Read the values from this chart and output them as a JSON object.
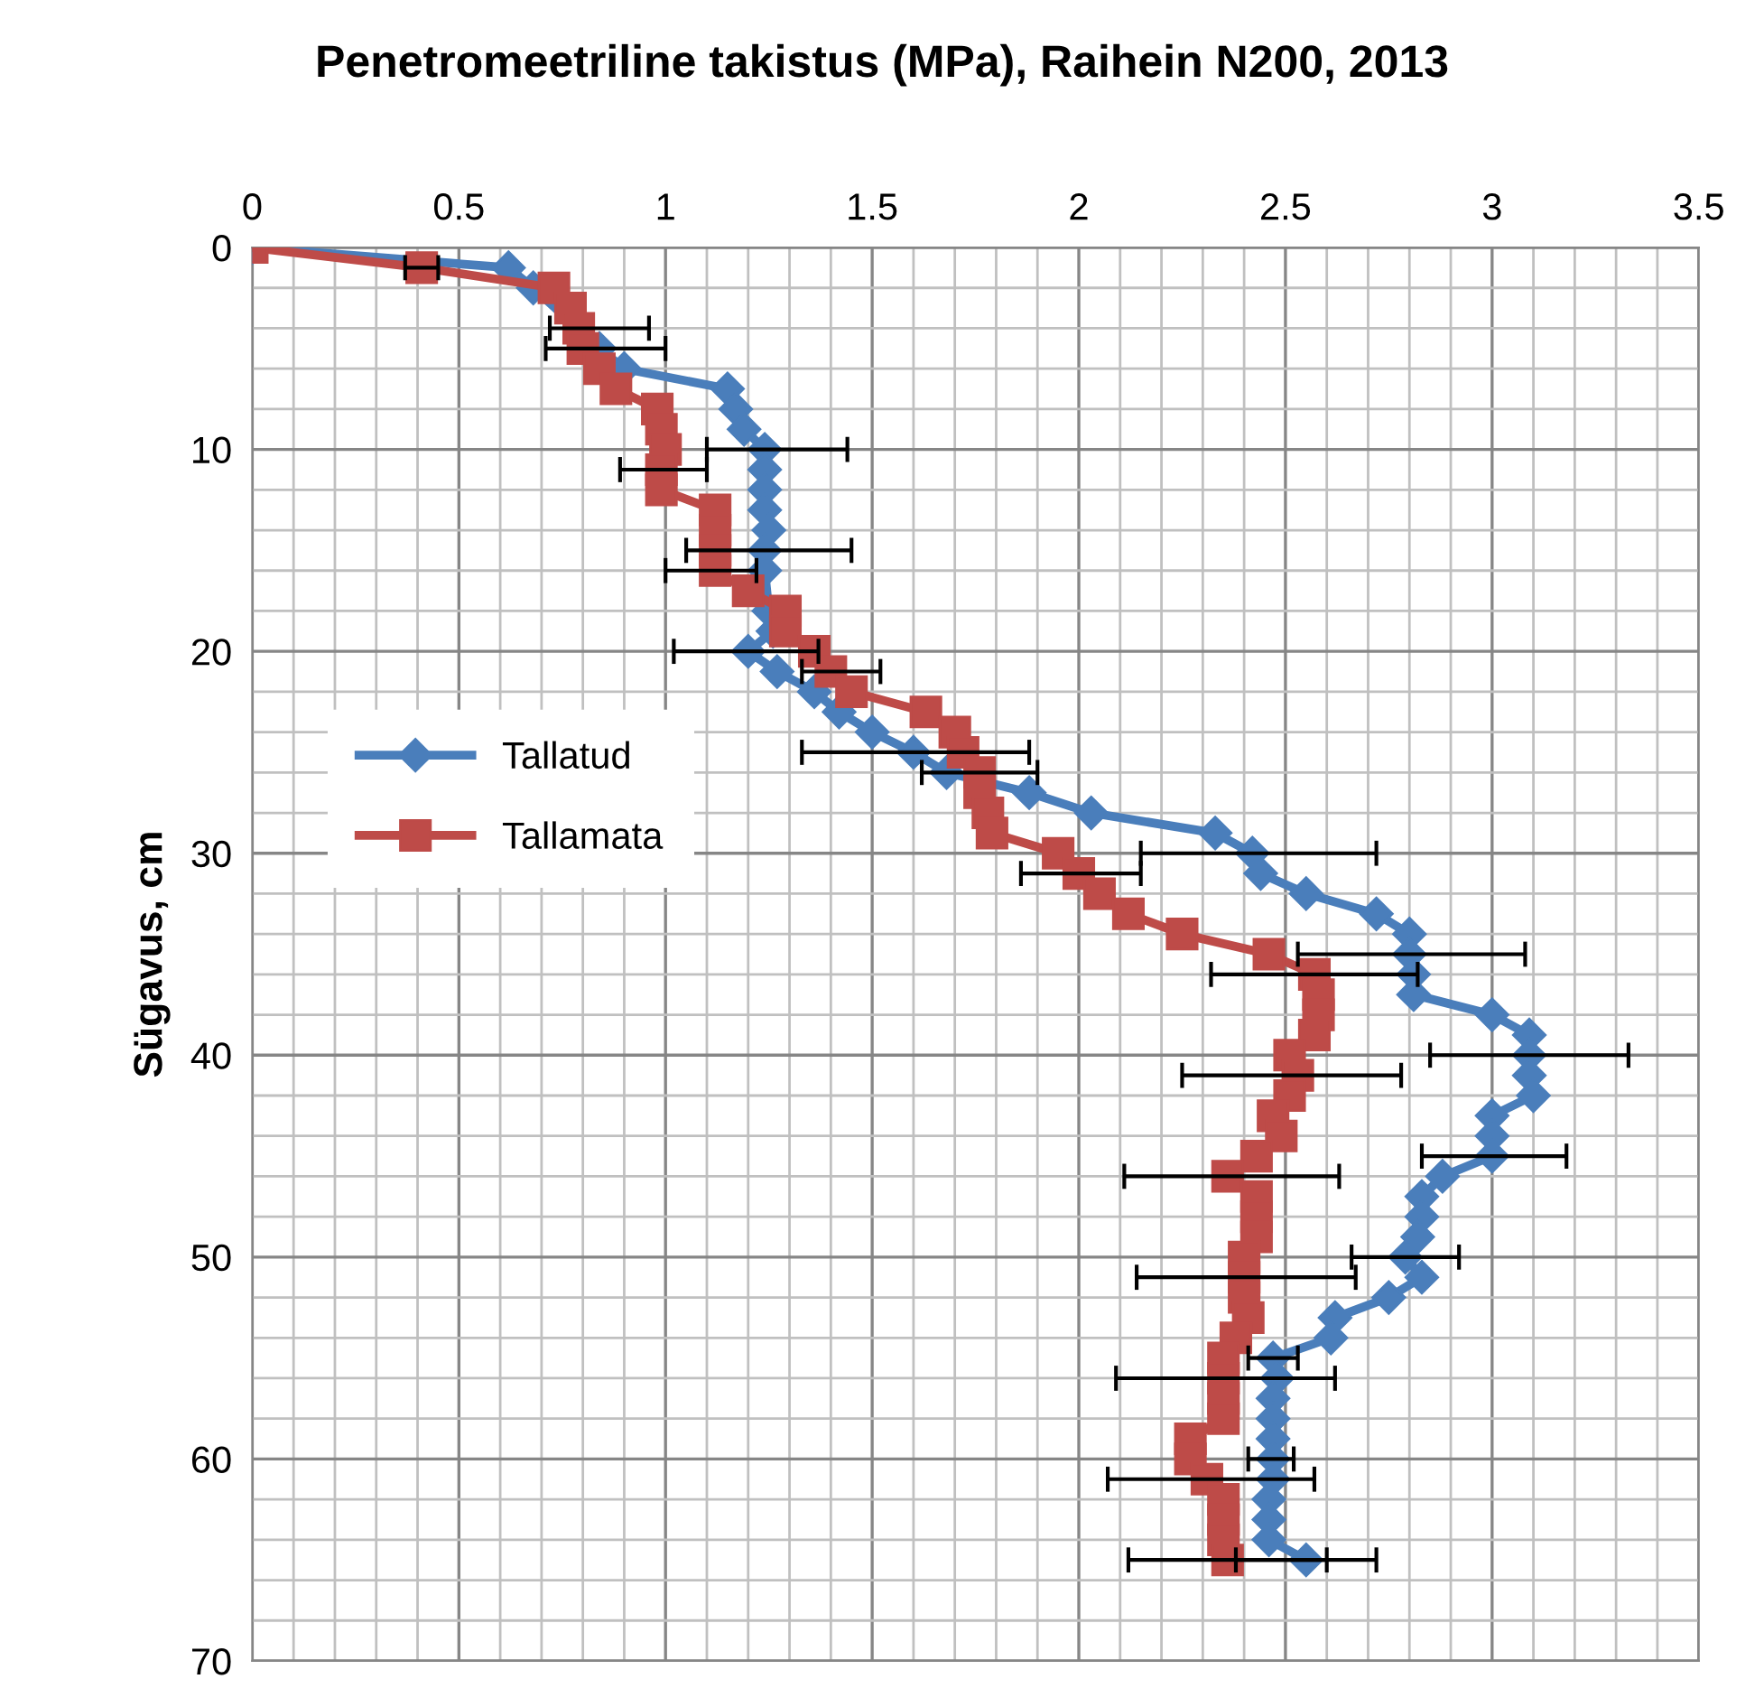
{
  "chart_data": {
    "type": "line",
    "title": "Penetromeetriline takistus (MPa), Raihein N200, 2013",
    "ylabel": "Sügavus, cm",
    "xlim": [
      0,
      3.5
    ],
    "xticks": [
      0,
      0.5,
      1,
      1.5,
      2,
      2.5,
      3,
      3.5
    ],
    "ylim": [
      70,
      0
    ],
    "yticks": [
      0,
      10,
      20,
      30,
      40,
      50,
      60,
      70
    ],
    "grid": true,
    "legend": "left",
    "series": [
      {
        "name": "Tallatud",
        "color": "#4a7ebb",
        "marker": "diamond",
        "x": [
          0,
          0.62,
          0.68,
          0.84,
          0.9,
          1.15,
          1.17,
          1.19,
          1.24,
          1.24,
          1.24,
          1.24,
          1.25,
          1.24,
          1.24,
          1.25,
          1.26,
          1.2,
          1.27,
          1.36,
          1.42,
          1.5,
          1.6,
          1.68,
          1.88,
          2.03,
          2.33,
          2.42,
          2.44,
          2.55,
          2.72,
          2.8,
          2.8,
          2.81,
          2.81,
          3.0,
          3.09,
          3.09,
          3.09,
          3.1,
          3.0,
          3.0,
          3.0,
          2.88,
          2.83,
          2.83,
          2.82,
          2.79,
          2.83,
          2.75,
          2.62,
          2.61,
          2.47,
          2.48,
          2.47,
          2.47,
          2.47,
          2.47,
          2.47,
          2.46,
          2.46,
          2.46,
          2.55
        ],
        "values": [
          0,
          1,
          2,
          5,
          6,
          7,
          8,
          9,
          10,
          11,
          12,
          13,
          14,
          15,
          16,
          18,
          19,
          20,
          21,
          22,
          23,
          24,
          25,
          26,
          27,
          28,
          29,
          30,
          31,
          32,
          33,
          34,
          35,
          36,
          37,
          38,
          39,
          40,
          41,
          42,
          43,
          44,
          45,
          46,
          47,
          48,
          49,
          50,
          51,
          52,
          53,
          54,
          55,
          56,
          57,
          58,
          59,
          60,
          61,
          62,
          63,
          64,
          65
        ],
        "xerrors": [
          null,
          null,
          null,
          null,
          null,
          null,
          null,
          null,
          [
            1.1,
            1.44
          ],
          null,
          null,
          null,
          null,
          [
            1.05,
            1.45
          ],
          null,
          null,
          null,
          [
            1.02,
            1.37
          ],
          null,
          null,
          null,
          null,
          [
            1.33,
            1.88
          ],
          null,
          null,
          null,
          null,
          [
            2.15,
            2.72
          ],
          null,
          null,
          null,
          null,
          [
            2.53,
            3.08
          ],
          null,
          null,
          null,
          null,
          [
            2.85,
            3.33
          ],
          null,
          null,
          null,
          null,
          [
            2.83,
            3.18
          ],
          null,
          null,
          null,
          null,
          [
            2.66,
            2.92
          ],
          null,
          null,
          null,
          null,
          [
            2.41,
            2.53
          ],
          null,
          null,
          null,
          null,
          [
            2.41,
            2.52
          ],
          null,
          null,
          null,
          null,
          [
            2.38,
            2.72
          ]
        ]
      },
      {
        "name": "Tallamata",
        "color": "#be4b48",
        "marker": "square",
        "x": [
          0,
          0.41,
          0.73,
          0.77,
          0.79,
          0.8,
          0.84,
          0.88,
          0.98,
          0.99,
          1.0,
          0.99,
          0.99,
          1.12,
          1.12,
          1.12,
          1.12,
          1.2,
          1.29,
          1.29,
          1.36,
          1.4,
          1.45,
          1.63,
          1.7,
          1.72,
          1.76,
          1.76,
          1.78,
          1.79,
          1.95,
          2.0,
          2.05,
          2.12,
          2.25,
          2.46,
          2.57,
          2.58,
          2.58,
          2.57,
          2.51,
          2.53,
          2.51,
          2.47,
          2.49,
          2.43,
          2.36,
          2.43,
          2.43,
          2.43,
          2.4,
          2.4,
          2.4,
          2.41,
          2.38,
          2.35,
          2.35,
          2.35,
          2.35,
          2.27,
          2.27,
          2.31,
          2.35,
          2.35,
          2.35,
          2.36
        ],
        "values": [
          0,
          1,
          2,
          3,
          4,
          5,
          6,
          7,
          8,
          9,
          10,
          11,
          12,
          13,
          14,
          15,
          16,
          17,
          18,
          19,
          20,
          21,
          22,
          23,
          24,
          25,
          26,
          27,
          28,
          29,
          30,
          31,
          32,
          33,
          34,
          35,
          36,
          37,
          38,
          39,
          40,
          41,
          42,
          43,
          44,
          45,
          46,
          47,
          48,
          49,
          50,
          51,
          52,
          53,
          54,
          55,
          56,
          57,
          58,
          59,
          60,
          61,
          62,
          63,
          64,
          65
        ],
        "xerrors": [
          null,
          [
            0.37,
            0.45
          ],
          null,
          null,
          [
            0.72,
            0.96
          ],
          [
            0.71,
            1.0
          ],
          null,
          null,
          null,
          null,
          null,
          [
            0.89,
            1.1
          ],
          null,
          null,
          null,
          null,
          [
            1.0,
            1.22
          ],
          null,
          null,
          null,
          null,
          [
            1.33,
            1.52
          ],
          null,
          null,
          null,
          null,
          [
            1.62,
            1.9
          ],
          null,
          null,
          null,
          null,
          [
            1.86,
            2.15
          ],
          null,
          null,
          null,
          null,
          [
            2.32,
            2.82
          ],
          null,
          null,
          null,
          null,
          [
            2.25,
            2.78
          ],
          null,
          null,
          null,
          null,
          [
            2.11,
            2.63
          ],
          null,
          null,
          null,
          null,
          [
            2.14,
            2.67
          ],
          null,
          null,
          null,
          null,
          [
            2.09,
            2.62
          ],
          null,
          null,
          null,
          null,
          [
            2.07,
            2.57
          ],
          null,
          null,
          null,
          [
            2.12,
            2.6
          ]
        ]
      }
    ]
  }
}
